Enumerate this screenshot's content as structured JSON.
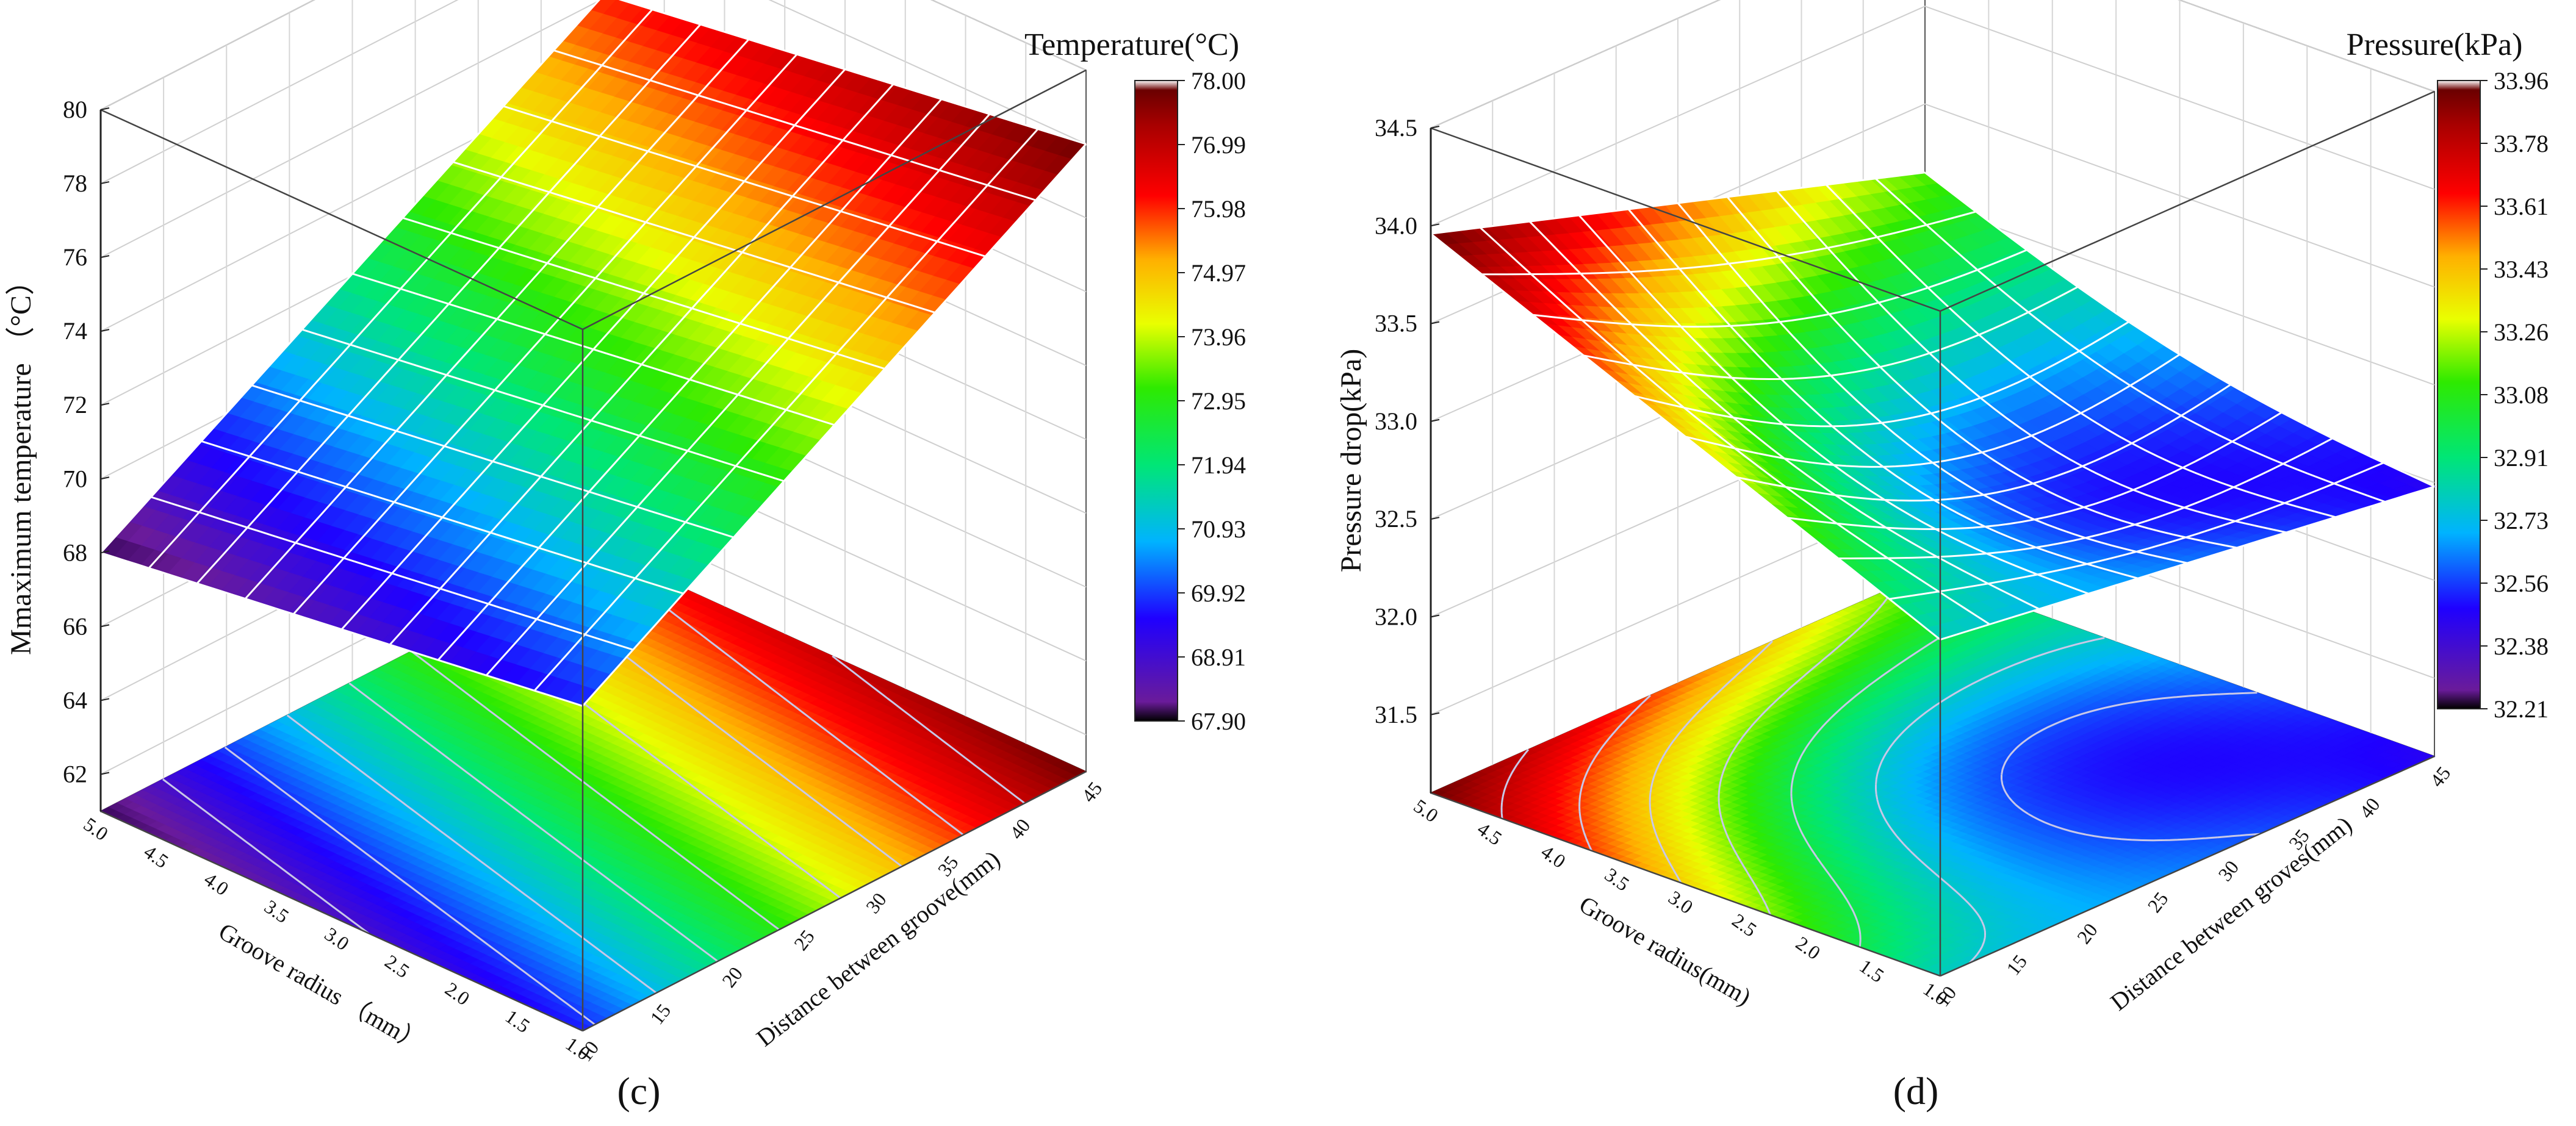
{
  "chart_data": [
    {
      "type": "surface3d",
      "panel_label": "(c)",
      "zlabel": "Mmaximum temperature （°C）",
      "xlabel": "Groove radius （mm）",
      "ylabel": "Distance between groove(mm)",
      "z_ticks": [
        "62",
        "64",
        "66",
        "68",
        "70",
        "72",
        "74",
        "76",
        "78",
        "80"
      ],
      "z_range": [
        61,
        80
      ],
      "x_ticks": [
        "5.0",
        "4.5",
        "4.0",
        "3.5",
        "3.0",
        "2.5",
        "2.0",
        "1.5",
        "1.0"
      ],
      "y_ticks": [
        "10",
        "15",
        "20",
        "25",
        "30",
        "35",
        "40",
        "45"
      ],
      "x_range": [
        1.0,
        5.0
      ],
      "y_range": [
        10,
        45
      ],
      "colorbar": {
        "title": "Temperature(°C)",
        "ticks": [
          "78.00",
          "76.99",
          "75.98",
          "74.97",
          "73.96",
          "72.95",
          "71.94",
          "70.93",
          "69.92",
          "68.91",
          "67.90"
        ],
        "min": 67.9,
        "max": 78.0
      },
      "surface_corners": {
        "r5_d10": 68.0,
        "r1_d10": 69.8,
        "r5_d45": 76.1,
        "r1_d45": 78.0
      },
      "contour_values": [
        69.0,
        70.0,
        71.0,
        72.0,
        73.0,
        74.0,
        75.0,
        76.0,
        77.0
      ]
    },
    {
      "type": "surface3d",
      "panel_label": "(d)",
      "zlabel": "Pressure drop(kPa)",
      "xlabel": "Groove radius(mm)",
      "ylabel": "Distance between groves(mm)",
      "z_ticks": [
        "31.5",
        "32.0",
        "32.5",
        "33.0",
        "33.5",
        "34.0",
        "34.5"
      ],
      "z_range": [
        31.1,
        34.5
      ],
      "x_ticks": [
        "5.0",
        "4.5",
        "4.0",
        "3.5",
        "3.0",
        "2.5",
        "2.0",
        "1.5",
        "1.0"
      ],
      "y_ticks": [
        "10",
        "15",
        "20",
        "25",
        "30",
        "35",
        "40",
        "45"
      ],
      "x_range": [
        1.0,
        5.0
      ],
      "y_range": [
        10,
        45
      ],
      "colorbar": {
        "title": "Pressure(kPa)",
        "ticks": [
          "33.96",
          "33.78",
          "33.61",
          "33.43",
          "33.26",
          "33.08",
          "32.91",
          "32.73",
          "32.56",
          "32.38",
          "32.21"
        ],
        "min": 32.21,
        "max": 33.96
      },
      "surface_corners": {
        "r5_d10": 33.96,
        "r1_d10": 32.82,
        "r5_d45": 33.15,
        "r1_d45": 32.48,
        "minimum": 32.21
      },
      "contour_values": [
        32.4,
        32.6,
        32.8,
        33.0,
        33.2,
        33.4,
        33.6,
        33.8
      ]
    }
  ]
}
